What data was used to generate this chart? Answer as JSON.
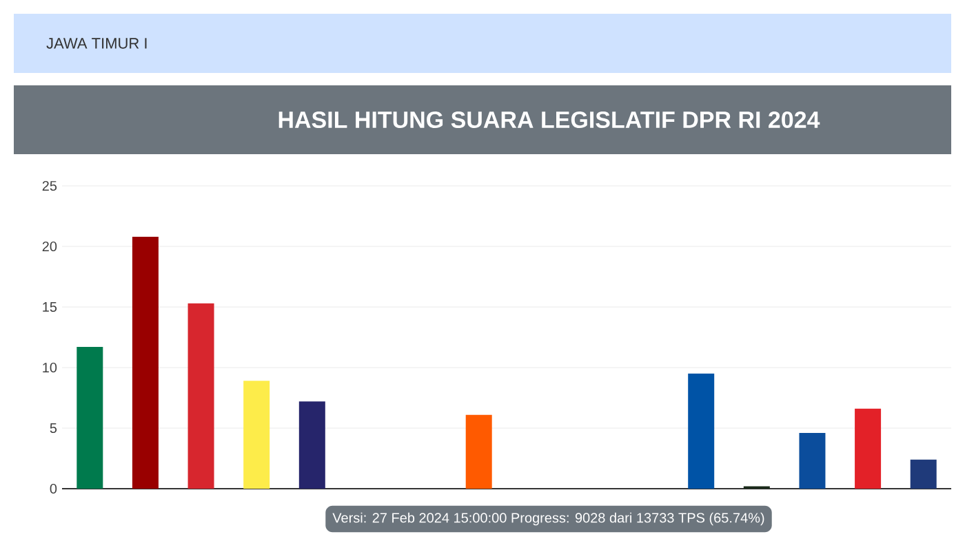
{
  "chart_data": {
    "type": "bar",
    "title": "HASIL HITUNG SUARA LEGISLATIF DPR RI 2024",
    "annotations": [
      "JAWA TIMUR I",
      "Versi: 27 Feb 2024 15:00:00 Progress: 9028 dari 13733 TPS (65.74%)"
    ],
    "categories": [
      null,
      null,
      null,
      null,
      null,
      null,
      null,
      null,
      null,
      null,
      null,
      null,
      null,
      null,
      null,
      null
    ],
    "values": [
      11.7,
      20.8,
      15.3,
      8.9,
      7.2,
      null,
      null,
      6.1,
      null,
      null,
      null,
      9.5,
      0.2,
      4.6,
      6.6,
      2.4
    ],
    "colors": [
      "#007a4d",
      "#990000",
      "#d7262e",
      "#fdec4a",
      "#26256b",
      null,
      null,
      "#ff5a00",
      null,
      null,
      null,
      "#0053a6",
      "#1a2a1a",
      "#0b4d9c",
      "#e32128",
      "#1f3a7a"
    ],
    "ylim": [
      0,
      25
    ],
    "yticks": [
      0,
      5,
      10,
      15,
      20,
      25
    ],
    "grid": "y",
    "tick_labels": "y"
  }
}
